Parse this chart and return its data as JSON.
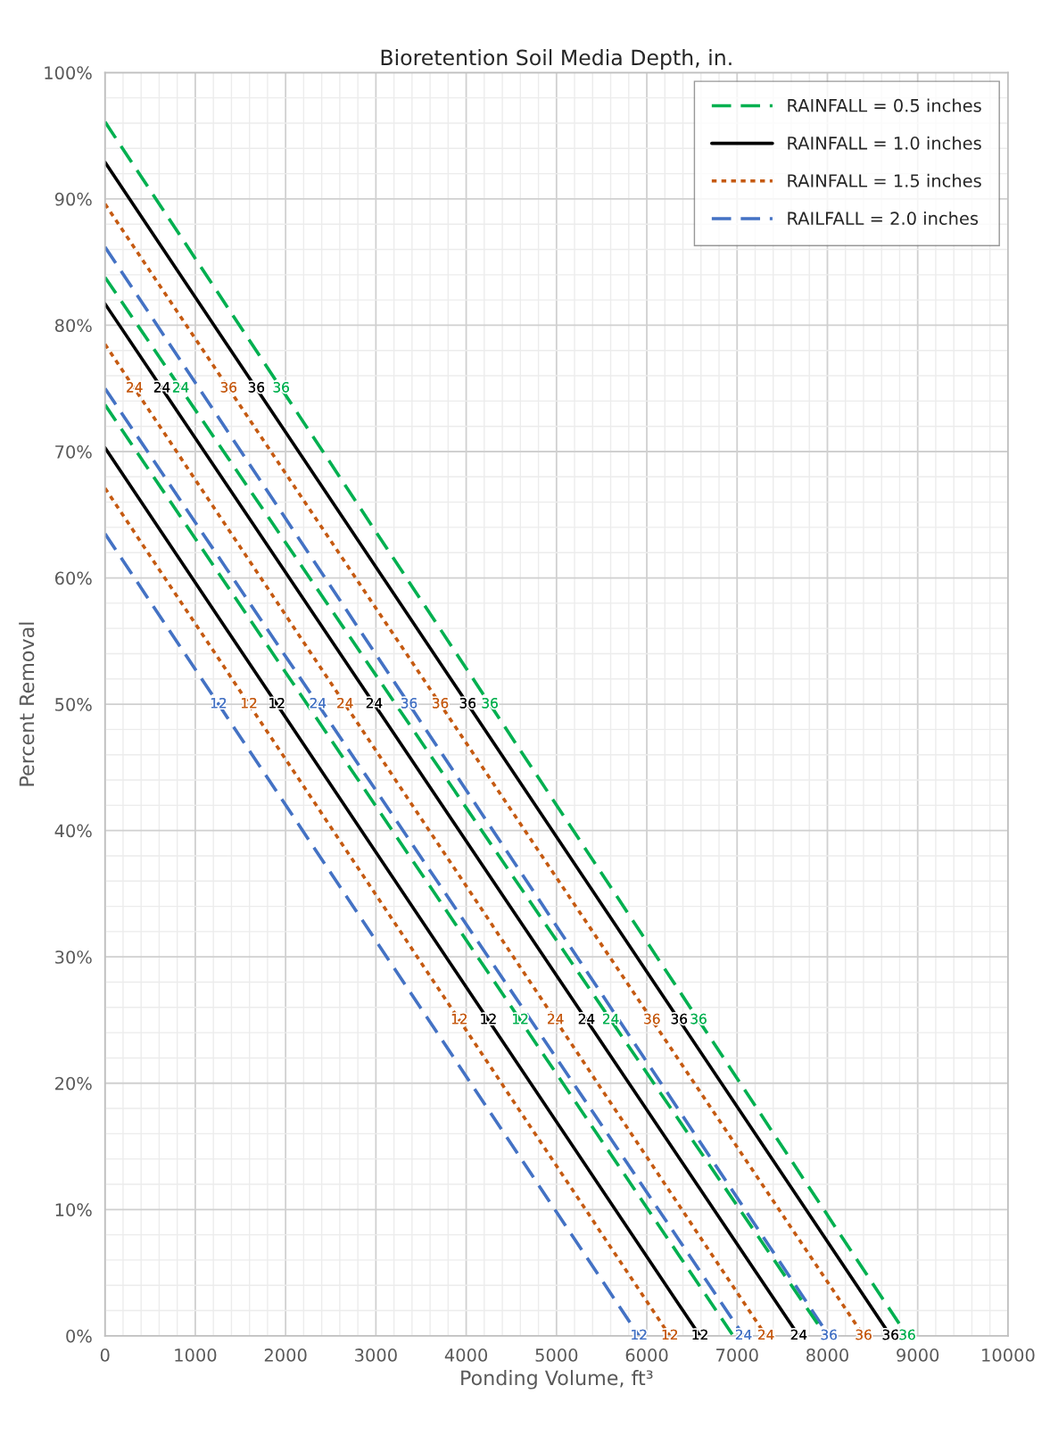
{
  "chart_data": {
    "type": "line",
    "title": "Bioretention Soil Media Depth, in.",
    "xlabel": "Ponding Volume, ft³",
    "ylabel": "Percent Removal",
    "xlim": [
      0,
      10000
    ],
    "xticks": [
      0,
      1000,
      2000,
      3000,
      4000,
      5000,
      6000,
      7000,
      8000,
      9000,
      10000
    ],
    "ylim": [
      0,
      100
    ],
    "yticks": [
      {
        "value": 0,
        "label": "0%"
      },
      {
        "value": 10,
        "label": "10%"
      },
      {
        "value": 20,
        "label": "20%"
      },
      {
        "value": 30,
        "label": "30%"
      },
      {
        "value": 40,
        "label": "40%"
      },
      {
        "value": 50,
        "label": "50%"
      },
      {
        "value": 60,
        "label": "60%"
      },
      {
        "value": 70,
        "label": "70%"
      },
      {
        "value": 80,
        "label": "80%"
      },
      {
        "value": 90,
        "label": "90%"
      },
      {
        "value": 100,
        "label": "100%"
      }
    ],
    "grid": true,
    "legend": "top right",
    "series": [
      {
        "name": "RAINFALL = 0.5 inches",
        "color": "#00b050",
        "line_style": "dashed",
        "x": [
          0,
          1951,
          4262,
          6573,
          8884
        ],
        "values": [
          96.1,
          75,
          50,
          25,
          0
        ]
      },
      {
        "name": "RAINFALL = 1.0 inches",
        "color": "#000000",
        "line_style": "solid",
        "x": [
          0,
          1676,
          4017,
          6358,
          8699
        ],
        "values": [
          92.9,
          75,
          50,
          25,
          0
        ]
      },
      {
        "name": "RAINFALL = 1.5 inches",
        "color": "#c55a11",
        "line_style": "dotted",
        "x": [
          0,
          1369,
          3713,
          6057,
          8401
        ],
        "values": [
          89.6,
          75,
          50,
          25,
          0
        ]
      },
      {
        "name": "RAILFALL = 2.0 inches",
        "color": "#4472c4",
        "line_style": "dashed",
        "x": [
          0,
          1042,
          3367,
          5692,
          8017
        ],
        "values": [
          86.2,
          75,
          50,
          25,
          0
        ]
      },
      {
        "color": "#00b050",
        "line_style": "dashed",
        "x": [
          0,
          838,
          3219,
          5601,
          7982
        ],
        "values": [
          83.8,
          75,
          50,
          25,
          0
        ]
      },
      {
        "color": "#000000",
        "line_style": "solid",
        "x": [
          0,
          630,
          2981,
          5332,
          7683
        ],
        "values": [
          81.7,
          75,
          50,
          25,
          0
        ]
      },
      {
        "color": "#c55a11",
        "line_style": "dotted",
        "x": [
          0,
          326,
          2658,
          4989,
          7320
        ],
        "values": [
          78.5,
          75,
          50,
          25,
          0
        ]
      },
      {
        "color": "#4472c4",
        "line_style": "dashed",
        "x": [
          0,
          2357,
          4715,
          7072
        ],
        "values": [
          75.0,
          50,
          25,
          0
        ]
      },
      {
        "color": "#00b050",
        "line_style": "dashed",
        "x": [
          0,
          2238,
          4598,
          6958
        ],
        "values": [
          73.7,
          50,
          25,
          0
        ]
      },
      {
        "color": "#000000",
        "line_style": "solid",
        "x": [
          0,
          1902,
          4245,
          6588
        ],
        "values": [
          70.3,
          50,
          25,
          0
        ]
      },
      {
        "color": "#c55a11",
        "line_style": "dotted",
        "x": [
          0,
          1594,
          3924,
          6254
        ],
        "values": [
          67.1,
          50,
          25,
          0
        ]
      },
      {
        "color": "#4472c4",
        "line_style": "dashed",
        "x": [
          0,
          1257,
          3585,
          5913
        ],
        "values": [
          63.5,
          50,
          25,
          0
        ]
      }
    ],
    "annotations": [
      {
        "text": "36",
        "x": 1951,
        "y": 75
      },
      {
        "text": "36",
        "x": 4262,
        "y": 50
      },
      {
        "text": "36",
        "x": 6573,
        "y": 25
      },
      {
        "text": "36",
        "x": 8884,
        "y": 0
      },
      {
        "text": "36",
        "x": 1676,
        "y": 75
      },
      {
        "text": "36",
        "x": 4017,
        "y": 50
      },
      {
        "text": "36",
        "x": 6358,
        "y": 25
      },
      {
        "text": "36",
        "x": 8699,
        "y": 0
      },
      {
        "text": "36",
        "x": 1369,
        "y": 75
      },
      {
        "text": "36",
        "x": 3713,
        "y": 50
      },
      {
        "text": "36",
        "x": 6057,
        "y": 25
      },
      {
        "text": "36",
        "x": 8401,
        "y": 0
      },
      {
        "text": "36",
        "x": 3367,
        "y": 50
      },
      {
        "text": "36",
        "x": 8017,
        "y": 0
      },
      {
        "text": "24",
        "x": 838,
        "y": 75
      },
      {
        "text": "24",
        "x": 5601,
        "y": 25
      },
      {
        "text": "24",
        "x": 630,
        "y": 75
      },
      {
        "text": "24",
        "x": 2981,
        "y": 50
      },
      {
        "text": "24",
        "x": 5332,
        "y": 25
      },
      {
        "text": "24",
        "x": 7683,
        "y": 0
      },
      {
        "text": "24",
        "x": 326,
        "y": 75
      },
      {
        "text": "24",
        "x": 2658,
        "y": 50
      },
      {
        "text": "24",
        "x": 4989,
        "y": 25
      },
      {
        "text": "24",
        "x": 7320,
        "y": 0
      },
      {
        "text": "24",
        "x": 2357,
        "y": 50
      },
      {
        "text": "24",
        "x": 7072,
        "y": 0
      },
      {
        "text": "12",
        "x": 4598,
        "y": 25
      },
      {
        "text": "12",
        "x": 1902,
        "y": 50
      },
      {
        "text": "12",
        "x": 4245,
        "y": 25
      },
      {
        "text": "12",
        "x": 6588,
        "y": 0
      },
      {
        "text": "12",
        "x": 1594,
        "y": 50
      },
      {
        "text": "12",
        "x": 3924,
        "y": 25
      },
      {
        "text": "12",
        "x": 6254,
        "y": 0
      },
      {
        "text": "12",
        "x": 1257,
        "y": 50
      },
      {
        "text": "12",
        "x": 5913,
        "y": 0
      }
    ]
  }
}
